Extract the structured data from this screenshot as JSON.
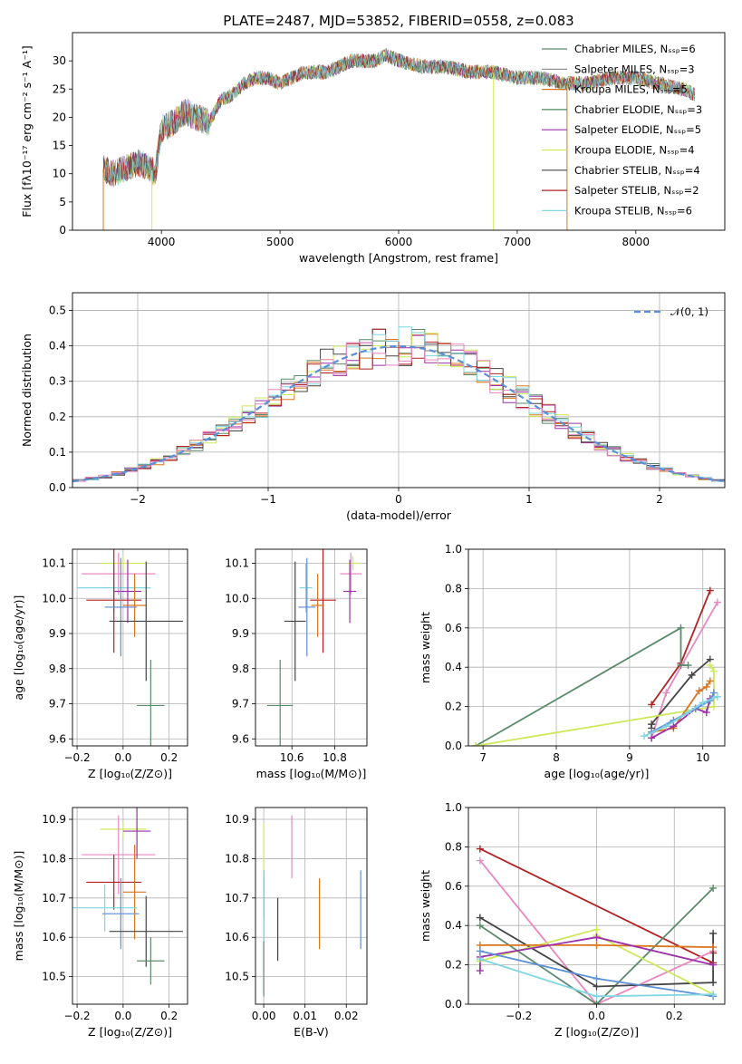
{
  "chart_data": [
    {
      "type": "line",
      "id": "spectrum",
      "title": "PLATE=2487, MJD=53852, FIBERID=0558, z=0.083",
      "xlabel": "wavelength [Angstrom, rest frame]",
      "ylabel": "Flux [fλ10⁻¹⁷ erg cm⁻² s⁻¹ A⁻¹]",
      "xlim": [
        3250,
        8750
      ],
      "ylim": [
        0,
        35
      ],
      "xticks": [
        4000,
        5000,
        6000,
        7000,
        8000
      ],
      "yticks": [
        0,
        5,
        10,
        15,
        20,
        25,
        30
      ],
      "legend_position": "upper right",
      "continuum": {
        "x": [
          3500,
          3600,
          3700,
          3800,
          3900,
          3950,
          4000,
          4100,
          4200,
          4300,
          4400,
          4500,
          4600,
          4700,
          4800,
          4900,
          5000,
          5200,
          5400,
          5600,
          5800,
          5900,
          6000,
          6200,
          6400,
          6600,
          6800,
          7000,
          7200,
          7400,
          7600,
          7800,
          8000,
          8200,
          8400,
          8500
        ],
        "y": [
          11,
          10,
          11,
          12,
          11,
          10,
          18,
          19,
          21,
          20,
          19,
          23,
          24,
          26,
          27,
          27,
          26,
          28,
          28,
          30,
          30,
          31,
          30,
          29,
          29,
          28,
          28,
          27,
          27,
          26,
          26,
          27,
          27,
          26,
          25,
          24
        ]
      },
      "series": [
        {
          "name": "Chabrier MILES, Nₛₛₚ=6",
          "color": "#5b8b6b"
        },
        {
          "name": "Salpeter MILES, Nₛₛₚ=3",
          "color": "#8a8a8a"
        },
        {
          "name": "Kroupa MILES, Nₛₛₚ=5",
          "color": "#d9771f"
        },
        {
          "name": "Chabrier ELODIE, Nₛₛₚ=3",
          "color": "#4e8a5b"
        },
        {
          "name": "Salpeter ELODIE, Nₛₛₚ=5",
          "color": "#9b30a8"
        },
        {
          "name": "Kroupa ELODIE, Nₛₛₚ=4",
          "color": "#cde85a"
        },
        {
          "name": "Chabrier STELIB, Nₛₛₚ=4",
          "color": "#444444"
        },
        {
          "name": "Salpeter STELIB, Nₛₛₚ=2",
          "color": "#b22222"
        },
        {
          "name": "Kroupa STELIB, Nₛₛₚ=6",
          "color": "#7fd6e0"
        }
      ],
      "dips": [
        {
          "x": 3510,
          "y_min": 0,
          "color": "#d9771f"
        },
        {
          "x": 3920,
          "y_min": 0,
          "color": "#cde85a"
        },
        {
          "x": 6800,
          "y_min": 0,
          "color": "#cde85a"
        },
        {
          "x": 7420,
          "y_min": 0,
          "color": "#d9771f"
        }
      ]
    },
    {
      "type": "histogram",
      "id": "residuals",
      "xlabel": "(data-model)/error",
      "ylabel": "Normed distribution",
      "xlim": [
        -2.5,
        2.5
      ],
      "ylim": [
        0,
        0.55
      ],
      "xticks": [
        -2,
        -1,
        0,
        1,
        2
      ],
      "yticks": [
        0.0,
        0.1,
        0.2,
        0.3,
        0.4,
        0.5
      ],
      "grid": true,
      "bin_width": 0.1,
      "reference_curve": {
        "label": "𝒩(0, 1)",
        "style": "dashed",
        "color": "#5b8fd6"
      },
      "legend_position": "upper right",
      "series_colors": [
        "#5b8b6b",
        "#d9771f",
        "#9b30a8",
        "#cde85a",
        "#444444",
        "#b22222",
        "#7fd6e0",
        "#e887c0"
      ]
    },
    {
      "type": "scatter",
      "id": "age_vs_Z",
      "xlabel": "Z [log₁₀(Z/Z⊙)]",
      "ylabel": "age  [log₁₀(age/yr)]",
      "xlim": [
        -0.22,
        0.28
      ],
      "ylim": [
        9.58,
        10.14
      ],
      "xticks": [
        -0.2,
        0.0,
        0.2
      ],
      "yticks": [
        9.6,
        9.7,
        9.8,
        9.9,
        10.0,
        10.1
      ],
      "grid": true,
      "points": [
        {
          "x": 0.0,
          "y": 10.1,
          "xerr": 0.1,
          "yerr": 0.02,
          "color": "#cde85a"
        },
        {
          "x": -0.02,
          "y": 10.07,
          "xerr": 0.16,
          "yerr": 0.06,
          "color": "#e887c0"
        },
        {
          "x": -0.04,
          "y": 10.03,
          "xerr": 0.16,
          "yerr": 0.07,
          "color": "#7fd6e0"
        },
        {
          "x": 0.02,
          "y": 10.02,
          "xerr": 0.06,
          "yerr": 0.09,
          "color": "#9b30a8"
        },
        {
          "x": -0.04,
          "y": 9.995,
          "xerr": 0.12,
          "yerr": 0.15,
          "color": "#b22222"
        },
        {
          "x": 0.05,
          "y": 9.98,
          "xerr": 0.05,
          "yerr": 0.09,
          "color": "#d9771f"
        },
        {
          "x": -0.01,
          "y": 9.975,
          "xerr": 0.07,
          "yerr": 0.14,
          "color": "#5b8fd6"
        },
        {
          "x": 0.1,
          "y": 9.935,
          "xerr": 0.16,
          "yerr": 0.17,
          "color": "#444444"
        },
        {
          "x": 0.12,
          "y": 9.695,
          "xerr": 0.06,
          "yerr": 0.13,
          "color": "#5b8b6b"
        }
      ]
    },
    {
      "type": "scatter",
      "id": "age_vs_mass",
      "xlabel": "mass [log₁₀(M/M⊙)]",
      "ylabel": "",
      "xlim": [
        10.43,
        10.95
      ],
      "ylim": [
        9.58,
        10.14
      ],
      "xticks": [
        10.6,
        10.8
      ],
      "yticks": [
        9.6,
        9.7,
        9.8,
        9.9,
        10.0,
        10.1
      ],
      "grid": true,
      "points": [
        {
          "x": 10.885,
          "y": 10.1,
          "xerr": 0.03,
          "yerr": 0.02,
          "color": "#cde85a"
        },
        {
          "x": 10.875,
          "y": 10.07,
          "xerr": 0.05,
          "yerr": 0.06,
          "color": "#e887c0"
        },
        {
          "x": 10.665,
          "y": 10.03,
          "xerr": 0.03,
          "yerr": 0.07,
          "color": "#7fd6e0"
        },
        {
          "x": 10.87,
          "y": 10.02,
          "xerr": 0.03,
          "yerr": 0.09,
          "color": "#9b30a8"
        },
        {
          "x": 10.745,
          "y": 9.995,
          "xerr": 0.06,
          "yerr": 0.15,
          "color": "#b22222"
        },
        {
          "x": 10.72,
          "y": 9.98,
          "xerr": 0.03,
          "yerr": 0.09,
          "color": "#d9771f"
        },
        {
          "x": 10.67,
          "y": 9.975,
          "xerr": 0.04,
          "yerr": 0.14,
          "color": "#5b8fd6"
        },
        {
          "x": 10.615,
          "y": 9.935,
          "xerr": 0.05,
          "yerr": 0.17,
          "color": "#444444"
        },
        {
          "x": 10.545,
          "y": 9.695,
          "xerr": 0.06,
          "yerr": 0.13,
          "color": "#5b8b6b"
        }
      ]
    },
    {
      "type": "line",
      "id": "weight_vs_age",
      "xlabel": "age  [log₁₀(age/yr)]",
      "ylabel": "mass weight",
      "xlim": [
        6.8,
        10.3
      ],
      "ylim": [
        0,
        1
      ],
      "xticks": [
        7,
        8,
        9,
        10
      ],
      "yticks": [
        0.0,
        0.2,
        0.4,
        0.6,
        0.8,
        1.0
      ],
      "grid": true,
      "series": [
        {
          "color": "#b22222",
          "x": [
            9.3,
            9.7,
            10.1
          ],
          "y": [
            0.21,
            0.42,
            0.79
          ]
        },
        {
          "color": "#e887c0",
          "x": [
            9.3,
            9.5,
            10.2
          ],
          "y": [
            0.04,
            0.27,
            0.73
          ]
        },
        {
          "color": "#5b8b6b",
          "x": [
            6.9,
            9.7,
            9.7,
            9.8
          ],
          "y": [
            0.0,
            0.6,
            0.41,
            0.41
          ]
        },
        {
          "color": "#444444",
          "x": [
            9.3,
            9.3,
            9.85,
            10.1
          ],
          "y": [
            0.09,
            0.11,
            0.36,
            0.44
          ]
        },
        {
          "color": "#cde85a",
          "x": [
            6.9,
            10.15,
            10.15,
            10.1
          ],
          "y": [
            0.0,
            0.2,
            0.38,
            0.41
          ]
        },
        {
          "color": "#d9771f",
          "x": [
            9.3,
            9.6,
            9.95,
            10.05,
            10.1
          ],
          "y": [
            0.07,
            0.09,
            0.28,
            0.3,
            0.33
          ]
        },
        {
          "color": "#9b30a8",
          "x": [
            9.3,
            9.6,
            9.9,
            10.05,
            10.1
          ],
          "y": [
            0.04,
            0.1,
            0.19,
            0.17,
            0.24
          ]
        },
        {
          "color": "#5b8fd6",
          "x": [
            9.3,
            9.6,
            9.9,
            10.1,
            10.15
          ],
          "y": [
            0.07,
            0.13,
            0.19,
            0.23,
            0.27
          ]
        },
        {
          "color": "#7fd6e0",
          "x": [
            9.2,
            9.5,
            9.8,
            10.0,
            10.2
          ],
          "y": [
            0.05,
            0.1,
            0.17,
            0.22,
            0.25
          ]
        }
      ]
    },
    {
      "type": "scatter",
      "id": "mass_vs_Z",
      "xlabel": "Z [log₁₀(Z/Z⊙)]",
      "ylabel": "mass [log₁₀(M/M⊙)]",
      "xlim": [
        -0.22,
        0.28
      ],
      "ylim": [
        10.43,
        10.93
      ],
      "xticks": [
        -0.2,
        0.0,
        0.2
      ],
      "yticks": [
        10.5,
        10.6,
        10.7,
        10.8,
        10.9
      ],
      "grid": true,
      "points": [
        {
          "x": 0.0,
          "y": 10.875,
          "xerr": 0.1,
          "yerr": 0.02,
          "color": "#cde85a"
        },
        {
          "x": -0.02,
          "y": 10.81,
          "xerr": 0.16,
          "yerr": 0.1,
          "color": "#e887c0"
        },
        {
          "x": 0.06,
          "y": 10.87,
          "xerr": 0.06,
          "yerr": 0.07,
          "color": "#9b30a8"
        },
        {
          "x": -0.04,
          "y": 10.74,
          "xerr": 0.12,
          "yerr": 0.07,
          "color": "#b22222"
        },
        {
          "x": 0.05,
          "y": 10.715,
          "xerr": 0.05,
          "yerr": 0.12,
          "color": "#d9771f"
        },
        {
          "x": -0.08,
          "y": 10.675,
          "xerr": 0.14,
          "yerr": 0.06,
          "color": "#7fd6e0"
        },
        {
          "x": -0.01,
          "y": 10.66,
          "xerr": 0.08,
          "yerr": 0.09,
          "color": "#5b8fd6"
        },
        {
          "x": 0.1,
          "y": 10.615,
          "xerr": 0.16,
          "yerr": 0.09,
          "color": "#444444"
        },
        {
          "x": 0.12,
          "y": 10.54,
          "xerr": 0.06,
          "yerr": 0.06,
          "color": "#5b8b6b"
        }
      ]
    },
    {
      "type": "scatter",
      "id": "mass_vs_ebv",
      "xlabel": "E(B-V)",
      "ylabel": "",
      "xlim": [
        -0.002,
        0.025
      ],
      "ylim": [
        10.43,
        10.93
      ],
      "xticks": [
        0.0,
        0.01,
        0.02
      ],
      "yticks": [
        10.5,
        10.6,
        10.7,
        10.8,
        10.9
      ],
      "grid": true,
      "points": [
        {
          "x": 0.0,
          "y": 10.82,
          "yerr": 0.07,
          "color": "#cde85a"
        },
        {
          "x": 0.0,
          "y": 10.71,
          "yerr": 0.06,
          "color": "#b22222"
        },
        {
          "x": 0.0,
          "y": 10.6,
          "yerr": 0.15,
          "color": "#5b8b6b"
        },
        {
          "x": 0.0,
          "y": 10.68,
          "yerr": 0.09,
          "color": "#7fd6e0"
        },
        {
          "x": 0.0034,
          "y": 10.62,
          "yerr": 0.08,
          "color": "#444444"
        },
        {
          "x": 0.0068,
          "y": 10.83,
          "yerr": 0.08,
          "color": "#e887c0"
        },
        {
          "x": 0.0135,
          "y": 10.66,
          "yerr": 0.09,
          "color": "#d9771f"
        },
        {
          "x": 0.0235,
          "y": 10.67,
          "yerr": 0.1,
          "color": "#5b8fd6"
        }
      ]
    },
    {
      "type": "line",
      "id": "weight_vs_Z",
      "xlabel": "Z [log₁₀(Z/Z⊙)]",
      "ylabel": "mass weight",
      "xlim": [
        -0.33,
        0.33
      ],
      "ylim": [
        0,
        1
      ],
      "xticks": [
        -0.2,
        0.0,
        0.2
      ],
      "yticks": [
        0.0,
        0.2,
        0.4,
        0.6,
        0.8,
        1.0
      ],
      "grid": true,
      "series": [
        {
          "color": "#b22222",
          "x": [
            -0.3,
            0.3,
            0.3
          ],
          "y": [
            0.79,
            0.21,
            0.26
          ]
        },
        {
          "color": "#e887c0",
          "x": [
            -0.3,
            0.0,
            0.3
          ],
          "y": [
            0.73,
            0.0,
            0.27
          ]
        },
        {
          "color": "#5b8b6b",
          "x": [
            -0.3,
            0.0,
            0.3
          ],
          "y": [
            0.4,
            0.0,
            0.59
          ]
        },
        {
          "color": "#444444",
          "x": [
            -0.3,
            0.0,
            0.3,
            0.3
          ],
          "y": [
            0.44,
            0.09,
            0.11,
            0.36
          ]
        },
        {
          "color": "#cde85a",
          "x": [
            -0.3,
            0.0,
            0.0,
            0.3
          ],
          "y": [
            0.22,
            0.38,
            0.35,
            0.05
          ]
        },
        {
          "color": "#d9771f",
          "x": [
            -0.3,
            0.0,
            0.3
          ],
          "y": [
            0.3,
            0.3,
            0.29
          ]
        },
        {
          "color": "#9b30a8",
          "x": [
            -0.3,
            -0.3,
            0.0,
            0.3
          ],
          "y": [
            0.17,
            0.24,
            0.34,
            0.2
          ]
        },
        {
          "color": "#5b8fd6",
          "x": [
            -0.3,
            0.0,
            0.3
          ],
          "y": [
            0.27,
            0.13,
            0.04
          ]
        },
        {
          "color": "#7fd6e0",
          "x": [
            -0.3,
            0.0,
            0.3
          ],
          "y": [
            0.23,
            0.04,
            0.05
          ]
        }
      ]
    }
  ]
}
